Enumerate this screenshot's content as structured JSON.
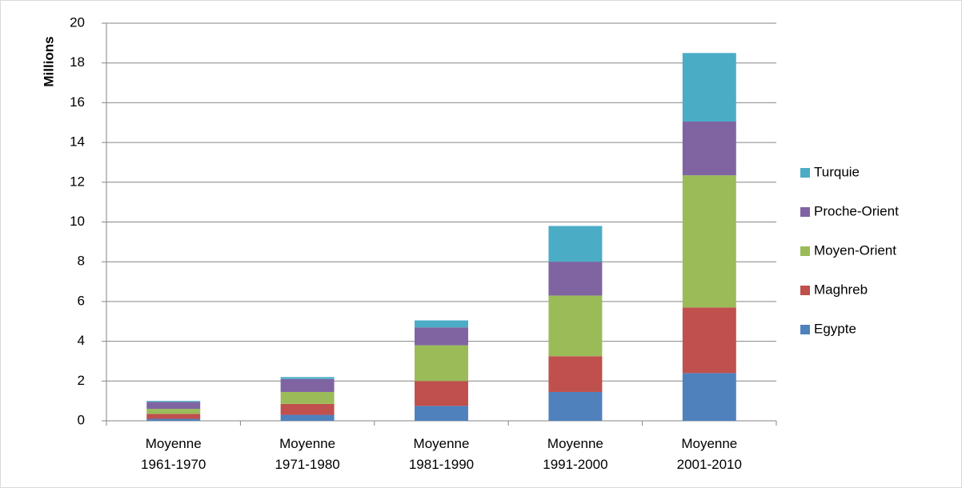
{
  "chart_data": {
    "type": "stacked_bar",
    "y_label": "Millions",
    "categories": [
      "Moyenne 1961-1970",
      "Moyenne 1971-1980",
      "Moyenne 1981-1990",
      "Moyenne 1991-2000",
      "Moyenne 2001-2010"
    ],
    "series": [
      {
        "name": "Egypte",
        "color": "#4f81bd",
        "values": [
          0.1,
          0.3,
          0.75,
          1.45,
          2.4
        ]
      },
      {
        "name": "Maghreb",
        "color": "#c0504d",
        "values": [
          0.25,
          0.55,
          1.25,
          1.8,
          3.3
        ]
      },
      {
        "name": "Moyen-Orient",
        "color": "#9bbb59",
        "values": [
          0.25,
          0.6,
          1.8,
          3.05,
          6.65
        ]
      },
      {
        "name": "Proche-Orient",
        "color": "#8064a2",
        "values": [
          0.35,
          0.65,
          0.9,
          1.7,
          2.7
        ]
      },
      {
        "name": "Turquie",
        "color": "#4bacc6",
        "values": [
          0.05,
          0.1,
          0.35,
          1.8,
          3.45
        ]
      }
    ],
    "ylim": [
      0,
      20
    ],
    "yticks": [
      0,
      2,
      4,
      6,
      8,
      10,
      12,
      14,
      16,
      18,
      20
    ],
    "grid": true,
    "legend": "right"
  }
}
